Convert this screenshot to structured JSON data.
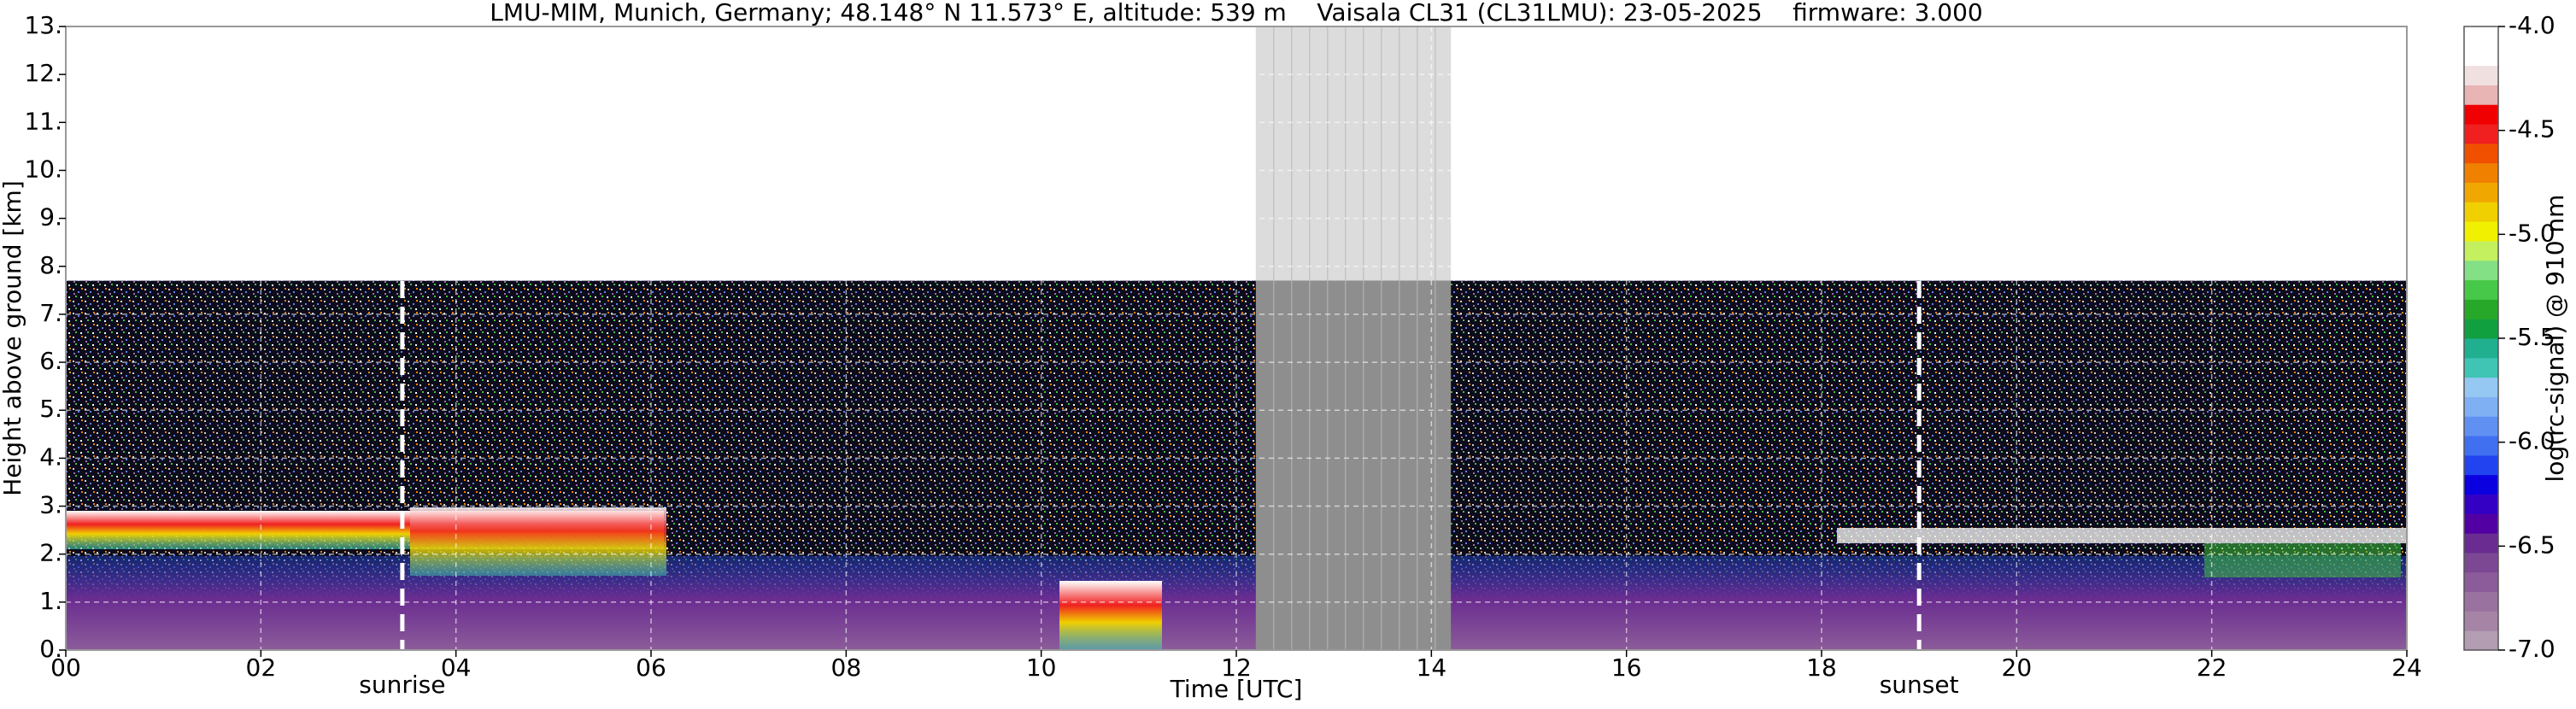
{
  "chart_data": {
    "type": "heatmap",
    "title": "LMU-MIM, Munich, Germany; 48.148° N 11.573° E, altitude: 539 m    Vaisala CL31 (CL31LMU): 23-05-2025    firmware: 3.000",
    "xlabel": "Time [UTC]",
    "ylabel": "Height above ground [km]",
    "xlim": [
      0,
      24
    ],
    "xticks": [
      {
        "value": 0,
        "label": "00"
      },
      {
        "value": 2,
        "label": "02"
      },
      {
        "value": 4,
        "label": "04"
      },
      {
        "value": 6,
        "label": "06"
      },
      {
        "value": 8,
        "label": "08"
      },
      10,
      12,
      14,
      16,
      18,
      20,
      22,
      24
    ],
    "ylim": [
      0,
      13
    ],
    "yticks": [
      {
        "value": 0,
        "label": "0."
      },
      {
        "value": 1,
        "label": "1."
      },
      {
        "value": 2,
        "label": "2."
      },
      {
        "value": 3,
        "label": "3."
      },
      {
        "value": 4,
        "label": "4."
      },
      {
        "value": 5,
        "label": "5."
      },
      {
        "value": 6,
        "label": "6."
      },
      {
        "value": 7,
        "label": "7."
      },
      {
        "value": 8,
        "label": "8."
      },
      {
        "value": 9,
        "label": "9."
      },
      {
        "value": 10,
        "label": "10."
      },
      {
        "value": 11,
        "label": "11."
      },
      {
        "value": 12,
        "label": "12."
      },
      {
        "value": 13,
        "label": "13."
      }
    ],
    "grid": true,
    "signal_ceiling": 7.7,
    "data_gap": [
      12.2,
      14.2
    ],
    "annotations": [
      {
        "label": "sunrise",
        "x": 3.45
      },
      {
        "label": "sunset",
        "x": 19.0
      }
    ],
    "colorbar": {
      "label": "log(rc-signal) @ 910 nm",
      "clim": [
        -7,
        -4
      ],
      "ticks": [
        {
          "value": -4,
          "label": "-4.0"
        },
        {
          "value": -4.5,
          "label": "-4.5"
        },
        {
          "value": -5,
          "label": "-5.0"
        },
        {
          "value": -5.5,
          "label": "-5.5"
        },
        {
          "value": -6,
          "label": "-6.0"
        },
        {
          "value": -6.5,
          "label": "-6.5"
        },
        {
          "value": -7,
          "label": "-7.0"
        }
      ],
      "colors": [
        "#b39db3",
        "#a584a5",
        "#9a72a0",
        "#8c5c9a",
        "#7c4894",
        "#6a2c90",
        "#5200a4",
        "#3400c4",
        "#0a00e0",
        "#2244f0",
        "#4070f0",
        "#6090f2",
        "#80b0f4",
        "#96c8f4",
        "#40c4b4",
        "#20b090",
        "#10a040",
        "#28a828",
        "#48c848",
        "#84e084",
        "#c4f060",
        "#f0f000",
        "#f0d000",
        "#f0a800",
        "#f08000",
        "#f05000",
        "#f02020",
        "#f00000",
        "#e8b4b4",
        "#f0e0e0",
        "#ffffff",
        "#ffffff"
      ]
    }
  }
}
